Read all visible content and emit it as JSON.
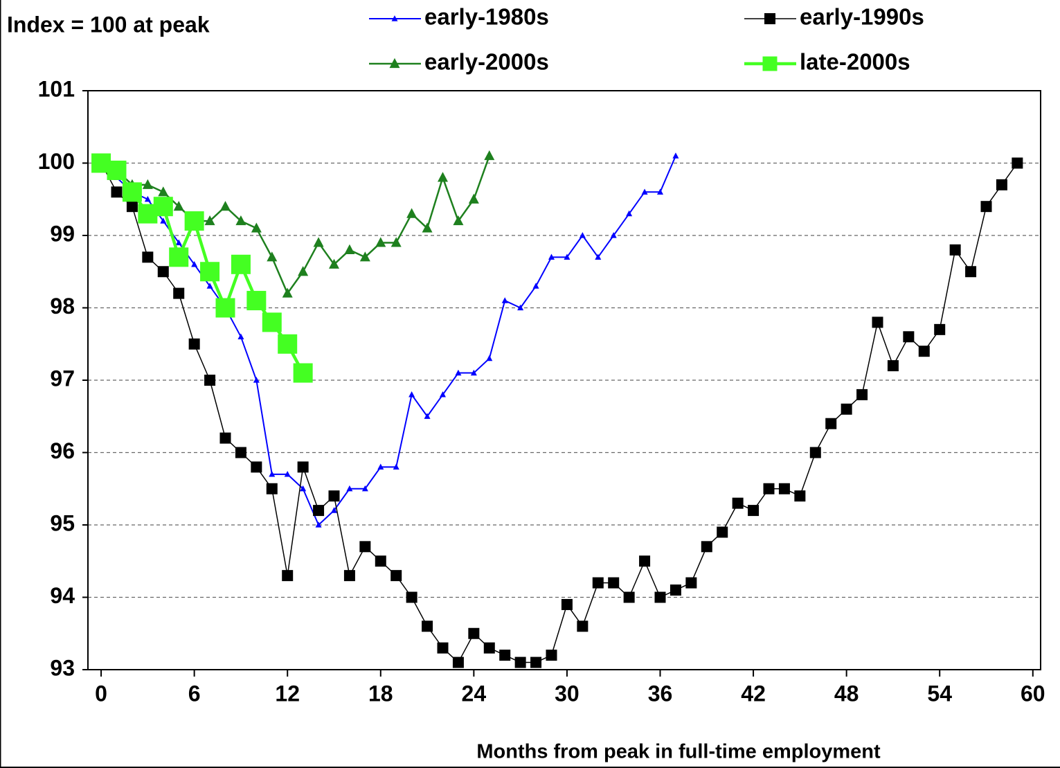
{
  "chart_data": {
    "type": "line",
    "y_label": "Index = 100 at peak",
    "x_label": "Months from peak in full-time employment",
    "xlim": [
      -0.85,
      60.5
    ],
    "xticks": [
      0,
      6,
      12,
      18,
      24,
      30,
      36,
      42,
      48,
      54,
      60
    ],
    "ylim": [
      93,
      101
    ],
    "yticks": [
      93,
      94,
      95,
      96,
      97,
      98,
      99,
      100,
      101
    ],
    "grid": true,
    "series": [
      {
        "name": "early-1980s",
        "color": "#0000ff",
        "marker": "triangle",
        "x": [
          0,
          1,
          2,
          3,
          4,
          5,
          6,
          7,
          8,
          9,
          10,
          11,
          12,
          13,
          14,
          15,
          16,
          17,
          18,
          19,
          20,
          21,
          22,
          23,
          24,
          25,
          26,
          27,
          28,
          29,
          30,
          31,
          32,
          33,
          34,
          35,
          36,
          37
        ],
        "values": [
          100,
          99.8,
          99.6,
          99.5,
          99.2,
          98.9,
          98.6,
          98.3,
          98.0,
          97.6,
          97.0,
          95.7,
          95.7,
          95.5,
          95.0,
          95.2,
          95.5,
          95.5,
          95.8,
          95.8,
          96.8,
          96.5,
          96.8,
          97.1,
          97.1,
          97.3,
          98.1,
          98.0,
          98.3,
          98.7,
          98.7,
          99.0,
          98.7,
          99.0,
          99.3,
          99.6,
          99.6,
          100.1
        ]
      },
      {
        "name": "early-1990s",
        "color": "#000000",
        "marker": "square",
        "x": [
          0,
          1,
          2,
          3,
          4,
          5,
          6,
          7,
          8,
          9,
          10,
          11,
          12,
          13,
          14,
          15,
          16,
          17,
          18,
          19,
          20,
          21,
          22,
          23,
          24,
          25,
          26,
          27,
          28,
          29,
          30,
          31,
          32,
          33,
          34,
          35,
          36,
          37,
          38,
          39,
          40,
          41,
          42,
          43,
          44,
          45,
          46,
          47,
          48,
          49,
          50,
          51,
          52,
          53,
          54,
          55,
          56,
          57,
          58,
          59
        ],
        "values": [
          100,
          99.6,
          99.4,
          98.7,
          98.5,
          98.2,
          97.5,
          97.0,
          96.2,
          96.0,
          95.8,
          95.5,
          94.3,
          95.8,
          95.2,
          95.4,
          94.3,
          94.7,
          94.5,
          94.3,
          94.0,
          93.6,
          93.3,
          93.1,
          93.5,
          93.3,
          93.2,
          93.1,
          93.1,
          93.2,
          93.9,
          93.6,
          94.2,
          94.2,
          94.0,
          94.5,
          94.0,
          94.1,
          94.2,
          94.7,
          94.9,
          95.3,
          95.2,
          95.5,
          95.5,
          95.4,
          96.0,
          96.4,
          96.6,
          96.8,
          97.8,
          97.2,
          97.6,
          97.4,
          97.7,
          98.8,
          98.5,
          99.4,
          99.7,
          100.0
        ]
      },
      {
        "name": "early-2000s",
        "color": "#1e801e",
        "marker": "triangle",
        "x": [
          0,
          1,
          2,
          3,
          4,
          5,
          6,
          7,
          8,
          9,
          10,
          11,
          12,
          13,
          14,
          15,
          16,
          17,
          18,
          19,
          20,
          21,
          22,
          23,
          24,
          25
        ],
        "values": [
          100,
          99.9,
          99.7,
          99.7,
          99.6,
          99.4,
          99.2,
          99.2,
          99.4,
          99.2,
          99.1,
          98.7,
          98.2,
          98.5,
          98.9,
          98.6,
          98.8,
          98.7,
          98.9,
          98.9,
          99.3,
          99.1,
          99.8,
          99.2,
          99.5,
          100.1
        ]
      },
      {
        "name": "late-2000s",
        "color": "#44ff22",
        "marker": "square",
        "x": [
          0,
          1,
          2,
          3,
          4,
          5,
          6,
          7,
          8,
          9,
          10,
          11,
          12,
          13
        ],
        "values": [
          100,
          99.9,
          99.6,
          99.3,
          99.4,
          98.7,
          99.2,
          98.5,
          98.0,
          98.6,
          98.1,
          97.8,
          97.5,
          97.1
        ]
      }
    ]
  }
}
